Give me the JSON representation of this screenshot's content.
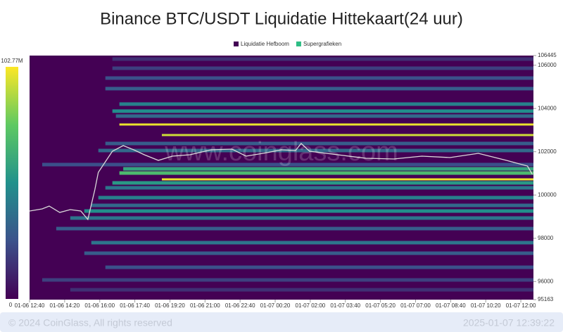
{
  "chart_data": {
    "type": "heatmap",
    "title": "Binance BTC/USDT Liquidatie Hittekaart(24 uur)",
    "watermark": "www.coinglass.com",
    "footer_left": "© 2024 CoinGlass, All rights reserved",
    "footer_right": "2025-01-07 12:39:22",
    "legend": [
      {
        "name": "Liquidatie Hefboom",
        "color": "#440154"
      },
      {
        "name": "Supergrafieken",
        "color": "#2ebd85"
      }
    ],
    "colorscale": [
      "#440154",
      "#3b528b",
      "#21918c",
      "#5ec962",
      "#fde725"
    ],
    "color_range": [
      0,
      {
        "value": 102.77,
        "label": "102.77M"
      }
    ],
    "xlim": [
      0,
      1436
    ],
    "xticks": [
      {
        "value": 0,
        "label": "01-06 12:40"
      },
      {
        "value": 100,
        "label": "01-06 14:20"
      },
      {
        "value": 200,
        "label": "01-06 16:00"
      },
      {
        "value": 300,
        "label": "01-06 17:40"
      },
      {
        "value": 400,
        "label": "01-06 19:20"
      },
      {
        "value": 500,
        "label": "01-06 21:00"
      },
      {
        "value": 600,
        "label": "01-06 22:40"
      },
      {
        "value": 700,
        "label": "01-07 00:20"
      },
      {
        "value": 800,
        "label": "01-07 02:00"
      },
      {
        "value": 900,
        "label": "01-07 03:40"
      },
      {
        "value": 1000,
        "label": "01-07 05:20"
      },
      {
        "value": 1100,
        "label": "01-07 07:00"
      },
      {
        "value": 1200,
        "label": "01-07 08:40"
      },
      {
        "value": 1300,
        "label": "01-07 10:20"
      },
      {
        "value": 1400,
        "label": "01-07 12:00"
      }
    ],
    "ylim": [
      95163,
      106445
    ],
    "yticks": [
      95163,
      96000,
      98000,
      100000,
      102000,
      104000,
      106000,
      106445
    ],
    "bands": [
      {
        "start": 236,
        "price": 106282,
        "value": 15
      },
      {
        "start": 236,
        "price": 105860,
        "value": 20
      },
      {
        "start": 216,
        "price": 105405,
        "value": 25
      },
      {
        "start": 216,
        "price": 104917,
        "value": 30
      },
      {
        "start": 256,
        "price": 104202,
        "value": 45
      },
      {
        "start": 236,
        "price": 103877,
        "value": 50
      },
      {
        "start": 246,
        "price": 103649,
        "value": 35
      },
      {
        "start": 256,
        "price": 103259,
        "value": 100
      },
      {
        "start": 377,
        "price": 102771,
        "value": 95
      },
      {
        "start": 216,
        "price": 102381,
        "value": 30
      },
      {
        "start": 196,
        "price": 102056,
        "value": 35
      },
      {
        "start": 36,
        "price": 101406,
        "value": 25
      },
      {
        "start": 267,
        "price": 101210,
        "value": 60
      },
      {
        "start": 256,
        "price": 101015,
        "value": 70
      },
      {
        "start": 377,
        "price": 100723,
        "value": 100
      },
      {
        "start": 236,
        "price": 100560,
        "value": 55
      },
      {
        "start": 216,
        "price": 100333,
        "value": 40
      },
      {
        "start": 196,
        "price": 99878,
        "value": 45
      },
      {
        "start": 176,
        "price": 99520,
        "value": 35
      },
      {
        "start": 156,
        "price": 99260,
        "value": 50
      },
      {
        "start": 116,
        "price": 98935,
        "value": 40
      },
      {
        "start": 76,
        "price": 98447,
        "value": 30
      },
      {
        "start": 176,
        "price": 97797,
        "value": 40
      },
      {
        "start": 156,
        "price": 97309,
        "value": 30
      },
      {
        "start": 216,
        "price": 96659,
        "value": 25
      },
      {
        "start": 36,
        "price": 96074,
        "value": 20
      },
      {
        "start": 116,
        "price": 95619,
        "value": 15
      }
    ],
    "price_line": {
      "color": "#d9d9d9",
      "x": [
        0,
        36,
        56,
        86,
        116,
        146,
        166,
        186,
        196,
        216,
        236,
        267,
        297,
        327,
        367,
        407,
        457,
        517,
        577,
        617,
        677,
        717,
        758,
        774,
        798,
        878,
        958,
        1038,
        1118,
        1198,
        1279,
        1359,
        1419,
        1433
      ],
      "values": [
        99260,
        99357,
        99488,
        99195,
        99325,
        99260,
        98870,
        100236,
        101048,
        101536,
        102024,
        102284,
        102089,
        101861,
        101601,
        101796,
        101861,
        102089,
        102121,
        101796,
        101959,
        102089,
        102056,
        102381,
        102024,
        101861,
        101699,
        101666,
        101796,
        101731,
        101926,
        101601,
        101341,
        100951
      ]
    }
  }
}
